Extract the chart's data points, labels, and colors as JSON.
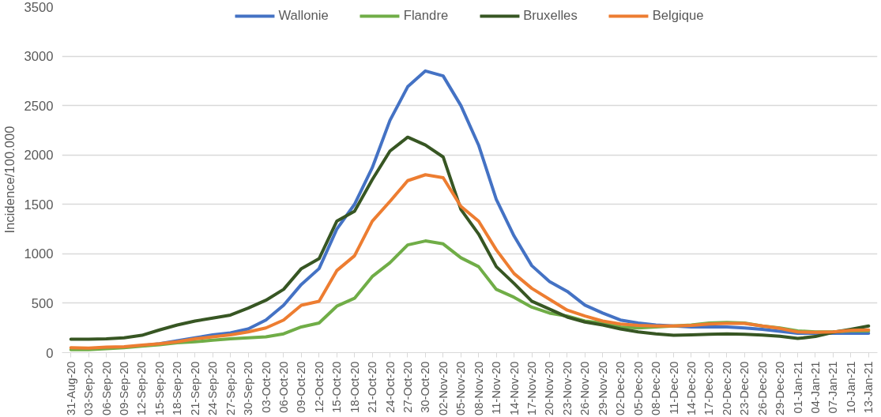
{
  "chart_data": {
    "type": "line",
    "ylabel": "Incidence/100.000",
    "categories": [
      "31-Aug-20",
      "03-Sep-20",
      "06-Sep-20",
      "09-Sep-20",
      "12-Sep-20",
      "15-Sep-20",
      "18-Sep-20",
      "21-Sep-20",
      "24-Sep-20",
      "27-Sep-20",
      "30-Sep-20",
      "03-Oct-20",
      "06-Oct-20",
      "09-Oct-20",
      "12-Oct-20",
      "15-Oct-20",
      "18-Oct-20",
      "21-Oct-20",
      "24-Oct-20",
      "27-Oct-20",
      "30-Oct-20",
      "02-Nov-20",
      "05-Nov-20",
      "08-Nov-20",
      "11-Nov-20",
      "14-Nov-20",
      "17-Nov-20",
      "20-Nov-20",
      "23-Nov-20",
      "26-Nov-20",
      "29-Nov-20",
      "02-Dec-20",
      "05-Dec-20",
      "08-Dec-20",
      "11-Dec-20",
      "14-Dec-20",
      "17-Dec-20",
      "20-Dec-20",
      "23-Dec-20",
      "26-Dec-20",
      "29-Dec-20",
      "01-Jan-21",
      "04-Jan-21",
      "07-Jan-21",
      "10-Jan-21",
      "13-Jan-21"
    ],
    "series": [
      {
        "name": "Wallonie",
        "color": "#4472c4",
        "values": [
          null,
          null,
          null,
          null,
          70,
          90,
          120,
          150,
          180,
          200,
          240,
          330,
          480,
          690,
          850,
          1250,
          1500,
          1870,
          2350,
          2690,
          2850,
          2800,
          2500,
          2100,
          1550,
          1180,
          880,
          720,
          620,
          480,
          400,
          330,
          300,
          280,
          270,
          260,
          260,
          260,
          250,
          235,
          215,
          195,
          195,
          195,
          195,
          195
        ]
      },
      {
        "name": "Flandre",
        "color": "#70ad47",
        "values": [
          30,
          30,
          40,
          50,
          65,
          80,
          100,
          110,
          125,
          140,
          150,
          160,
          190,
          260,
          300,
          470,
          550,
          770,
          910,
          1090,
          1130,
          1100,
          960,
          870,
          640,
          560,
          460,
          400,
          370,
          320,
          300,
          260,
          250,
          260,
          270,
          280,
          300,
          305,
          300,
          270,
          250,
          220,
          210,
          210,
          220,
          220
        ]
      },
      {
        "name": "Bruxelles",
        "color": "#375623",
        "values": [
          135,
          135,
          140,
          150,
          175,
          230,
          280,
          320,
          350,
          380,
          450,
          530,
          640,
          850,
          950,
          1330,
          1430,
          1750,
          2040,
          2180,
          2100,
          1980,
          1450,
          1200,
          870,
          700,
          520,
          440,
          360,
          310,
          280,
          240,
          210,
          190,
          175,
          180,
          185,
          190,
          185,
          178,
          165,
          143,
          163,
          205,
          236,
          270
        ]
      },
      {
        "name": "Belgique",
        "color": "#ed7d31",
        "values": [
          50,
          45,
          55,
          60,
          75,
          90,
          110,
          140,
          160,
          180,
          210,
          250,
          330,
          480,
          520,
          830,
          980,
          1330,
          1530,
          1740,
          1800,
          1770,
          1480,
          1330,
          1040,
          800,
          650,
          540,
          430,
          370,
          320,
          290,
          275,
          270,
          270,
          275,
          290,
          295,
          295,
          270,
          245,
          210,
          205,
          210,
          225,
          230
        ]
      }
    ],
    "ylim": [
      0,
      3500
    ],
    "yticks": [
      0,
      500,
      1000,
      1500,
      2000,
      2500,
      3000,
      3500
    ],
    "grid": "y",
    "legend": "top",
    "marker": "none",
    "line_style": "solid"
  }
}
